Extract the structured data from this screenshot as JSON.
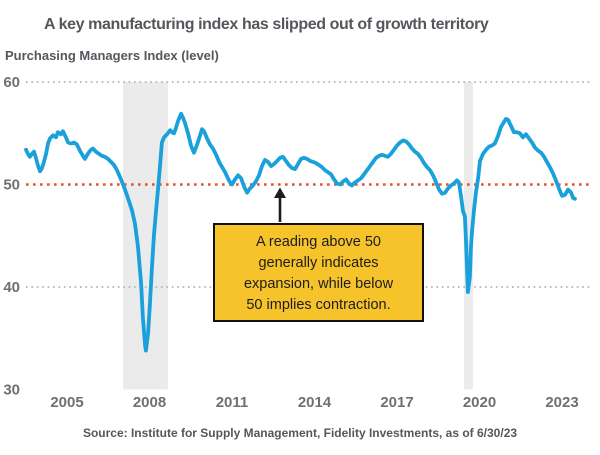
{
  "chart_data": {
    "type": "line",
    "title": "A key manufacturing index has slipped out of growth territory",
    "ylabel": "Purchasing Managers Index (level)",
    "source": "Source: Institute for Supply Management, Fidelity Investments, as of 6/30/23",
    "x_ticks": [
      "2005",
      "2008",
      "2011",
      "2014",
      "2017",
      "2020",
      "2023"
    ],
    "y_ticks": [
      "60",
      "50",
      "40",
      "30"
    ],
    "ylim": [
      30,
      60
    ],
    "xlim": [
      2003.4,
      2023.6
    ],
    "grid_levels": [
      60,
      40
    ],
    "threshold_level": 50,
    "shaded_bands": [
      [
        2007.04,
        2008.67
      ],
      [
        2019.44,
        2019.76
      ]
    ],
    "annotation": {
      "lines": [
        "A reading above 50",
        "generally indicates",
        "expansion, while below",
        "50 implies contraction."
      ],
      "arrow_points_to_value": 50
    },
    "series": [
      {
        "name": "Purchasing Managers Index",
        "x": [
          2003.51,
          2003.58,
          2003.65,
          2003.73,
          2003.8,
          2003.87,
          2003.95,
          2004.02,
          2004.09,
          2004.16,
          2004.24,
          2004.31,
          2004.38,
          2004.49,
          2004.6,
          2004.67,
          2004.78,
          2004.85,
          2004.96,
          2005.04,
          2005.15,
          2005.25,
          2005.36,
          2005.47,
          2005.58,
          2005.65,
          2005.76,
          2005.87,
          2005.95,
          2006.05,
          2006.16,
          2006.27,
          2006.38,
          2006.49,
          2006.6,
          2006.71,
          2006.82,
          2006.93,
          2007.04,
          2007.15,
          2007.25,
          2007.36,
          2007.47,
          2007.58,
          2007.69,
          2007.76,
          2007.84,
          2007.87,
          2007.95,
          2008.02,
          2008.09,
          2008.16,
          2008.24,
          2008.31,
          2008.38,
          2008.45,
          2008.53,
          2008.6,
          2008.67,
          2008.75,
          2008.82,
          2008.89,
          2008.96,
          2009.04,
          2009.15,
          2009.22,
          2009.29,
          2009.4,
          2009.51,
          2009.62,
          2009.73,
          2009.84,
          2009.91,
          2009.98,
          2010.09,
          2010.2,
          2010.31,
          2010.42,
          2010.53,
          2010.64,
          2010.75,
          2010.85,
          2010.93,
          2011.0,
          2011.11,
          2011.22,
          2011.33,
          2011.44,
          2011.55,
          2011.65,
          2011.76,
          2011.87,
          2011.98,
          2012.09,
          2012.2,
          2012.31,
          2012.42,
          2012.53,
          2012.64,
          2012.75,
          2012.85,
          2012.96,
          2013.07,
          2013.18,
          2013.29,
          2013.4,
          2013.51,
          2013.62,
          2013.73,
          2013.84,
          2013.95,
          2014.05,
          2014.16,
          2014.27,
          2014.38,
          2014.49,
          2014.6,
          2014.71,
          2014.82,
          2014.93,
          2015.04,
          2015.15,
          2015.25,
          2015.36,
          2015.47,
          2015.58,
          2015.69,
          2015.8,
          2015.91,
          2016.02,
          2016.13,
          2016.24,
          2016.35,
          2016.45,
          2016.56,
          2016.67,
          2016.78,
          2016.89,
          2017.0,
          2017.11,
          2017.22,
          2017.33,
          2017.44,
          2017.55,
          2017.65,
          2017.76,
          2017.87,
          2017.98,
          2018.09,
          2018.2,
          2018.31,
          2018.42,
          2018.53,
          2018.64,
          2018.75,
          2018.85,
          2018.96,
          2019.07,
          2019.18,
          2019.25,
          2019.33,
          2019.4,
          2019.47,
          2019.51,
          2019.55,
          2019.58,
          2019.65,
          2019.69,
          2019.73,
          2019.8,
          2019.87,
          2019.95,
          2020.02,
          2020.13,
          2020.24,
          2020.35,
          2020.45,
          2020.56,
          2020.67,
          2020.78,
          2020.89,
          2020.96,
          2021.04,
          2021.15,
          2021.25,
          2021.36,
          2021.47,
          2021.58,
          2021.69,
          2021.8,
          2021.91,
          2022.02,
          2022.13,
          2022.24,
          2022.35,
          2022.45,
          2022.56,
          2022.67,
          2022.78,
          2022.89,
          2023.0,
          2023.11,
          2023.22,
          2023.33,
          2023.4,
          2023.47
        ],
        "values": [
          53.4,
          53.0,
          52.7,
          53.0,
          53.2,
          52.6,
          51.8,
          51.3,
          51.6,
          52.2,
          53.0,
          54.0,
          54.5,
          54.8,
          54.6,
          55.1,
          54.9,
          55.2,
          54.6,
          54.1,
          54.0,
          54.1,
          53.9,
          53.3,
          52.8,
          52.5,
          53.0,
          53.4,
          53.5,
          53.2,
          53.0,
          52.8,
          52.7,
          52.5,
          52.2,
          51.9,
          51.4,
          50.7,
          50.0,
          49.2,
          48.4,
          47.5,
          46.2,
          44.0,
          40.5,
          37.0,
          34.3,
          33.8,
          35.5,
          38.5,
          42.0,
          45.0,
          47.5,
          49.5,
          51.8,
          54.1,
          54.6,
          54.8,
          55.0,
          55.3,
          55.1,
          55.0,
          55.5,
          56.2,
          56.9,
          56.5,
          56.0,
          55.0,
          53.8,
          53.1,
          53.9,
          54.8,
          55.4,
          55.2,
          54.5,
          53.9,
          53.5,
          52.9,
          52.2,
          51.7,
          51.2,
          50.6,
          50.2,
          50.0,
          50.5,
          50.9,
          50.6,
          49.8,
          49.2,
          49.6,
          49.9,
          50.3,
          50.9,
          51.8,
          52.4,
          52.2,
          51.8,
          52.0,
          52.3,
          52.6,
          52.7,
          52.3,
          51.9,
          51.6,
          51.5,
          52.0,
          52.5,
          52.6,
          52.5,
          52.3,
          52.2,
          52.1,
          51.9,
          51.7,
          51.4,
          51.2,
          51.0,
          50.5,
          50.1,
          50.0,
          50.3,
          50.5,
          50.1,
          49.9,
          50.2,
          50.4,
          50.6,
          51.0,
          51.4,
          51.8,
          52.2,
          52.6,
          52.8,
          52.9,
          52.8,
          52.7,
          53.0,
          53.4,
          53.8,
          54.1,
          54.3,
          54.2,
          53.9,
          53.5,
          53.2,
          53.0,
          52.6,
          52.1,
          51.7,
          51.4,
          50.9,
          50.2,
          49.5,
          49.1,
          49.2,
          49.6,
          49.9,
          50.1,
          50.4,
          50.2,
          48.8,
          47.4,
          46.9,
          44.5,
          41.5,
          39.5,
          41.0,
          44.0,
          45.5,
          47.5,
          49.2,
          50.6,
          52.3,
          53.0,
          53.4,
          53.7,
          53.8,
          54.0,
          54.7,
          55.6,
          56.1,
          56.4,
          56.3,
          55.7,
          55.1,
          55.1,
          55.0,
          54.6,
          54.9,
          54.5,
          54.1,
          53.6,
          53.3,
          53.1,
          52.7,
          52.2,
          51.7,
          51.1,
          50.4,
          49.6,
          48.9,
          49.0,
          49.5,
          49.2,
          48.7,
          48.6
        ]
      }
    ]
  },
  "colors": {
    "line": "#1aa0da",
    "threshold": "#e4512b",
    "gridline": "#b3b6b9",
    "band": "#ebebec",
    "callout_fill": "#f6c32b",
    "callout_border": "#111111",
    "callout_text": "#1d1d1d",
    "arrow": "#1d1d1d",
    "title_text": "#54575b",
    "axis_text": "#6d7175"
  }
}
